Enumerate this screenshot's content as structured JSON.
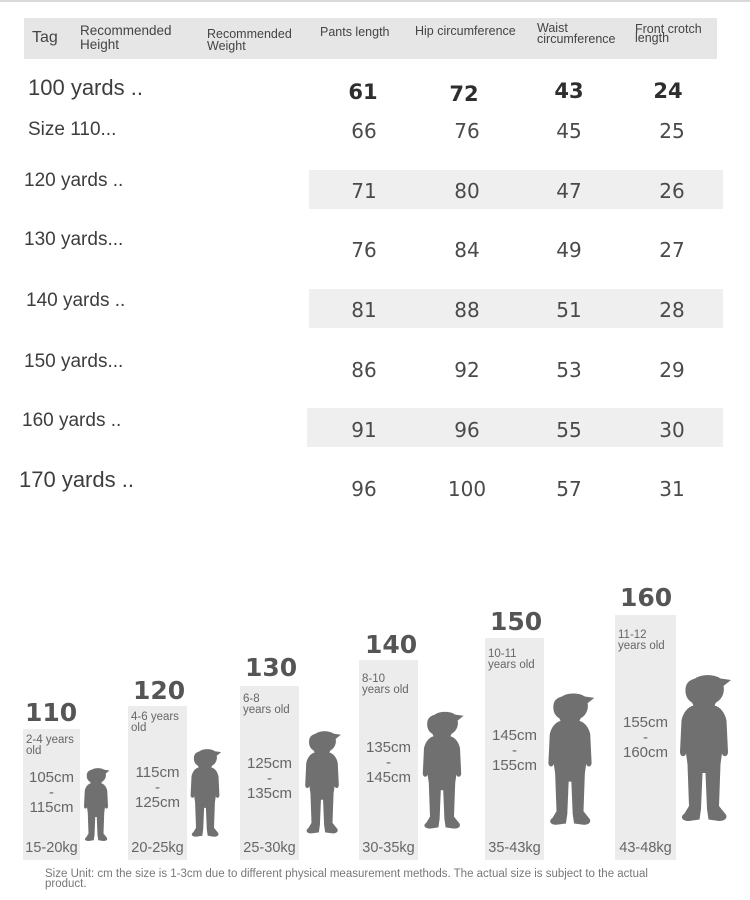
{
  "header": {
    "tag": "Tag",
    "height": "Recommended Height",
    "weight": "Recommended Weight",
    "pants": "Pants length",
    "hip": "Hip circumference",
    "waist": "Waist circumference",
    "crotch": "Front crotch length"
  },
  "rows": [
    {
      "tag": "100 yards ..",
      "pants": "61",
      "hip": "72",
      "waist": "43",
      "crotch": "24"
    },
    {
      "tag": "Size 110...",
      "pants": "66",
      "hip": "76",
      "waist": "45",
      "crotch": "25"
    },
    {
      "tag": "120 yards ..",
      "pants": "71",
      "hip": "80",
      "waist": "47",
      "crotch": "26"
    },
    {
      "tag": "130 yards...",
      "pants": "76",
      "hip": "84",
      "waist": "49",
      "crotch": "27"
    },
    {
      "tag": "140 yards ..",
      "pants": "81",
      "hip": "88",
      "waist": "51",
      "crotch": "28"
    },
    {
      "tag": "150 yards...",
      "pants": "86",
      "hip": "92",
      "waist": "53",
      "crotch": "29"
    },
    {
      "tag": "160 yards ..",
      "pants": "91",
      "hip": "96",
      "waist": "55",
      "crotch": "30"
    },
    {
      "tag": "170 yards ..",
      "pants": "96",
      "hip": "100",
      "waist": "57",
      "crotch": "31"
    }
  ],
  "sizes": [
    {
      "label": "110",
      "age_num": "2-4 years",
      "age_unit": "old",
      "min": "105cm",
      "max": "115cm",
      "weight": "15-20kg"
    },
    {
      "label": "120",
      "age_num": "4-6 years",
      "age_unit": "old",
      "min": "115cm",
      "max": "125cm",
      "weight": "20-25kg"
    },
    {
      "label": "130",
      "age_num": "6-8",
      "age_unit": "years old",
      "min": "125cm",
      "max": "135cm",
      "weight": "25-30kg"
    },
    {
      "label": "140",
      "age_num": "8-10",
      "age_unit": "years old",
      "min": "135cm",
      "max": "145cm",
      "weight": "30-35kg"
    },
    {
      "label": "150",
      "age_num": "10-11",
      "age_unit": "years old",
      "min": "145cm",
      "max": "155cm",
      "weight": "35-43kg"
    },
    {
      "label": "160",
      "age_num": "11-12",
      "age_unit": "years old",
      "min": "155cm",
      "max": "160cm",
      "weight": "43-48kg"
    }
  ],
  "range_dash": "-",
  "footnote": "Size Unit: cm the size is 1-3cm due to different physical measurement methods. The actual size is subject to the actual product.",
  "colors": {
    "header_bg": "#e6e6e6",
    "band_bg": "#efefef",
    "card_bg": "#ececec",
    "silhouette": "#707070"
  }
}
